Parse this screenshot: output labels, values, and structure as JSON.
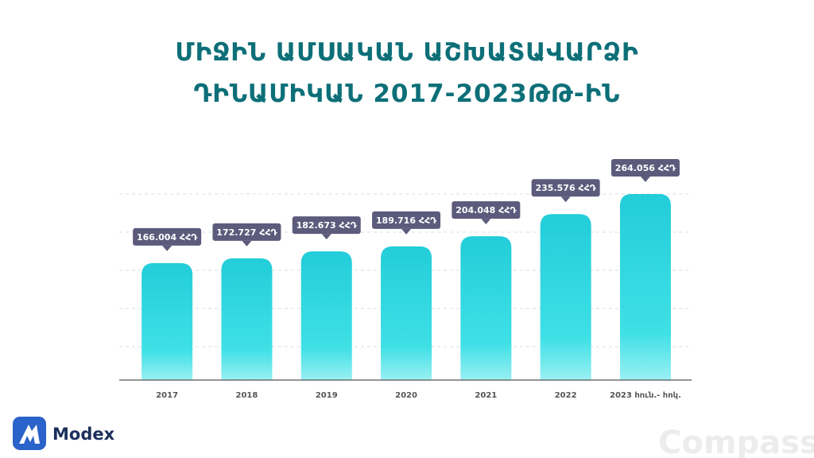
{
  "chart_data": {
    "type": "bar",
    "title": [
      "ՄԻՋԻՆ ԱՄՍԱԿԱՆ ԱՇԽԱՏԱՎԱՐՁԻ",
      "ԴԻՆԱՄԻԿԱՆ 2017-2023ԹԹ-ԻՆ"
    ],
    "categories": [
      "2017",
      "2018",
      "2019",
      "2020",
      "2021",
      "2022",
      "2023 հուն.- հոկ."
    ],
    "values": [
      166004,
      172727,
      182673,
      189716,
      204048,
      235576,
      264056
    ],
    "value_labels": [
      "166.004 ՀՀԴ",
      "172.727 ՀՀԴ",
      "182.673 ՀՀԴ",
      "189.716 ՀՀԴ",
      "204.048 ՀՀԴ",
      "235.576 ՀՀԴ",
      "264.056 ՀՀԴ"
    ],
    "color": "#2fd3dc"
  },
  "branding": {
    "logo": "Modex",
    "watermark": "Compass"
  }
}
